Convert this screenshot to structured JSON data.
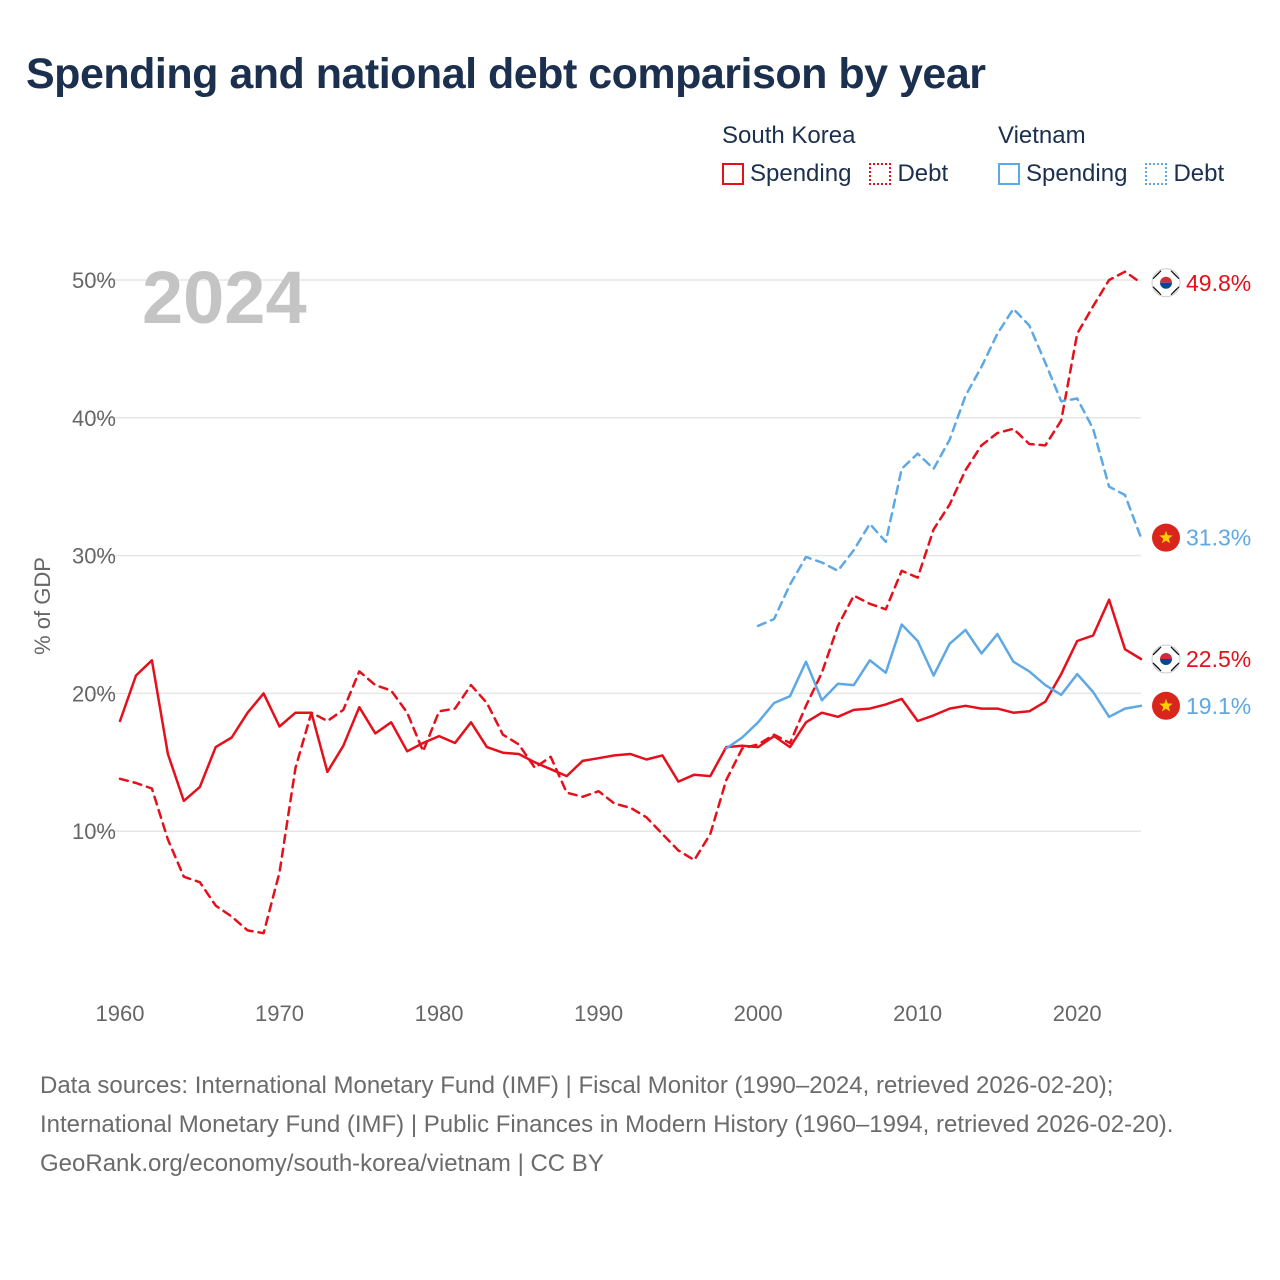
{
  "title": "Spending and national debt comparison by year",
  "legend": {
    "groups": [
      {
        "name": "South Korea",
        "items": [
          {
            "label": "Spending",
            "style": "solid",
            "color": "#e4101b"
          },
          {
            "label": "Debt",
            "style": "dotted",
            "color": "#e4101b"
          }
        ]
      },
      {
        "name": "Vietnam",
        "items": [
          {
            "label": "Spending",
            "style": "solid",
            "color": "#5ea8e4"
          },
          {
            "label": "Debt",
            "style": "dotted",
            "color": "#5ea8e4"
          }
        ]
      }
    ]
  },
  "chart_data": {
    "type": "line",
    "title": "Spending and national debt comparison by year",
    "year_label": "2024",
    "ylabel": "% of GDP",
    "xlabel": "",
    "xlim": [
      1960,
      2024
    ],
    "ylim": [
      0,
      50
    ],
    "x_ticks": [
      1960,
      1970,
      1980,
      1990,
      2000,
      2010,
      2020
    ],
    "y_ticks": [
      10,
      20,
      30,
      40,
      50
    ],
    "y_tick_labels": [
      "10%",
      "20%",
      "30%",
      "40%",
      "50%"
    ],
    "grid": true,
    "series": [
      {
        "name": "South Korea Spending",
        "country": "South Korea",
        "metric": "Spending",
        "color": "#e4101b",
        "dash": "solid",
        "end_label": "22.5%",
        "flag": "south-korea",
        "start_year": 1960,
        "values": [
          18.0,
          21.3,
          22.4,
          15.6,
          12.2,
          13.2,
          16.1,
          16.8,
          18.6,
          20.0,
          17.6,
          18.6,
          18.6,
          14.3,
          16.2,
          19.0,
          17.1,
          17.9,
          15.8,
          16.4,
          16.9,
          16.4,
          17.9,
          16.1,
          15.7,
          15.6,
          15.0,
          14.5,
          14.0,
          15.1,
          15.3,
          15.5,
          15.6,
          15.2,
          15.5,
          13.6,
          14.1,
          14.0,
          16.1,
          16.2,
          16.1,
          16.9,
          16.1,
          17.9,
          18.6,
          18.3,
          18.8,
          18.9,
          19.2,
          19.6,
          18.0,
          18.4,
          18.9,
          19.1,
          18.9,
          18.9,
          18.6,
          18.7,
          19.4,
          21.4,
          23.8,
          24.2,
          26.8,
          23.2,
          22.5
        ]
      },
      {
        "name": "South Korea Debt",
        "country": "South Korea",
        "metric": "Debt",
        "color": "#e4101b",
        "dash": "dashed",
        "end_label": "49.8%",
        "flag": "south-korea",
        "start_year": 1960,
        "values": [
          13.8,
          13.5,
          13.1,
          9.4,
          6.7,
          6.3,
          4.6,
          3.8,
          2.8,
          2.6,
          7.0,
          14.6,
          18.6,
          18.0,
          18.8,
          21.6,
          20.6,
          20.2,
          18.6,
          15.8,
          18.7,
          18.9,
          20.6,
          19.3,
          17.0,
          16.3,
          14.6,
          15.4,
          12.8,
          12.5,
          12.9,
          12.0,
          11.7,
          11.0,
          9.8,
          8.6,
          7.9,
          9.8,
          13.7,
          16.0,
          16.3,
          17.0,
          16.4,
          19.1,
          21.5,
          24.9,
          27.1,
          26.5,
          26.1,
          28.9,
          28.4,
          31.9,
          33.7,
          36.2,
          38.0,
          38.9,
          39.2,
          38.1,
          38.0,
          39.8,
          46.1,
          48.1,
          50.0,
          50.6,
          49.8
        ]
      },
      {
        "name": "Vietnam Spending",
        "country": "Vietnam",
        "metric": "Spending",
        "color": "#5ea8e4",
        "dash": "solid",
        "end_label": "19.1%",
        "flag": "vietnam",
        "start_year": 1998,
        "values": [
          16.0,
          16.8,
          17.9,
          19.3,
          19.8,
          22.3,
          19.5,
          20.7,
          20.6,
          22.4,
          21.5,
          25.0,
          23.8,
          21.3,
          23.6,
          24.6,
          22.9,
          24.3,
          22.3,
          21.6,
          20.6,
          19.9,
          21.4,
          20.1,
          18.3,
          18.9,
          19.1
        ]
      },
      {
        "name": "Vietnam Debt",
        "country": "Vietnam",
        "metric": "Debt",
        "color": "#5ea8e4",
        "dash": "dashed",
        "end_label": "31.3%",
        "flag": "vietnam",
        "start_year": 2000,
        "values": [
          24.9,
          25.4,
          27.9,
          29.9,
          29.5,
          28.9,
          30.4,
          32.3,
          31.0,
          36.3,
          37.4,
          36.3,
          38.4,
          41.6,
          43.7,
          46.1,
          47.9,
          46.7,
          44.0,
          41.2,
          41.4,
          39.2,
          35.0,
          34.4,
          31.3
        ]
      }
    ]
  },
  "source": {
    "line1": "Data sources: International Monetary Fund (IMF) | Fiscal Monitor (1990–2024, retrieved 2026-02-20); International Monetary Fund (IMF) | Public Finances in Modern History (1960–1994, retrieved 2026-02-20).",
    "line2": "GeoRank.org/economy/south-korea/vietnam | CC BY"
  }
}
